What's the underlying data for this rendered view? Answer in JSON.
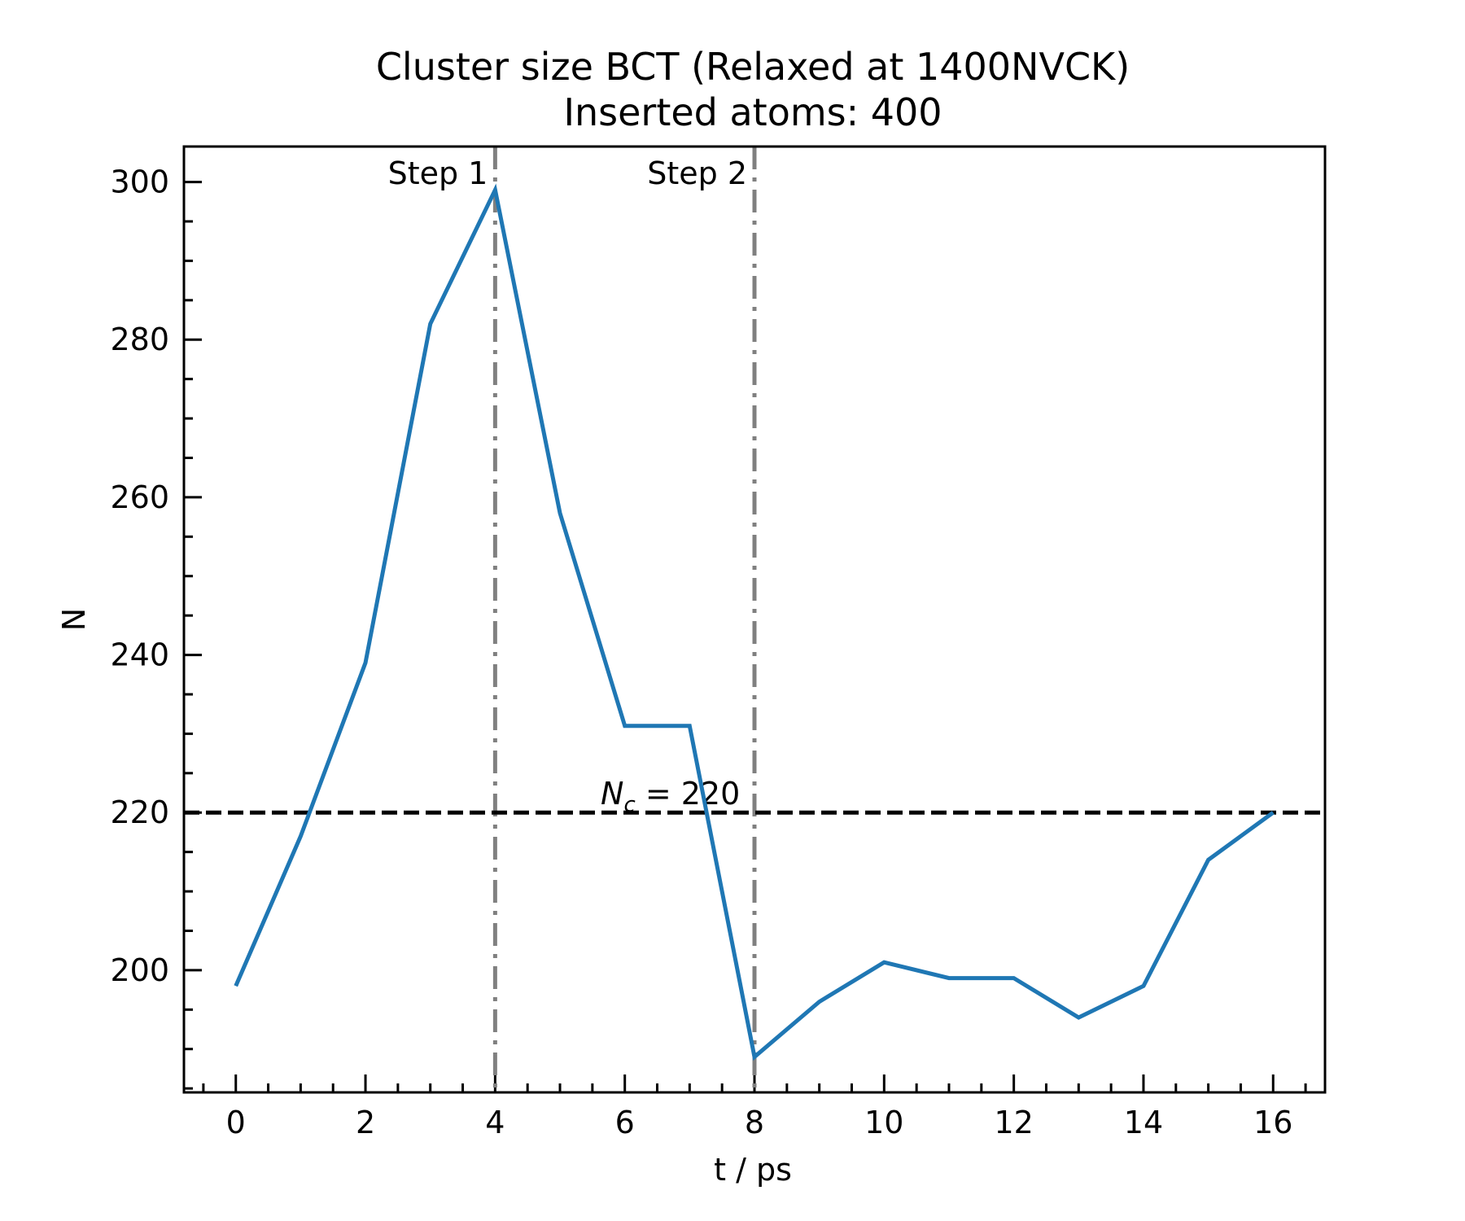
{
  "chart_data": {
    "type": "line",
    "title": "Cluster size BCT (Relaxed at 1400NVCK)",
    "subtitle": "Inserted atoms: 400",
    "xlabel": "t / ps",
    "ylabel": "N",
    "xlim": [
      -0.8,
      16.8
    ],
    "ylim": [
      184.5,
      304.5
    ],
    "xticks": [
      0,
      2,
      4,
      6,
      8,
      10,
      12,
      14,
      16
    ],
    "yticks": [
      200,
      220,
      240,
      260,
      280,
      300
    ],
    "grid": false,
    "series": [
      {
        "color": "#1f77b4",
        "x": [
          0,
          1,
          2,
          3,
          4,
          5,
          6,
          7,
          8,
          9,
          10,
          11,
          12,
          13,
          14,
          15,
          16
        ],
        "y": [
          198,
          217,
          239,
          282,
          299,
          258,
          231,
          231,
          189,
          196,
          201,
          199,
          199,
          194,
          198,
          214,
          220
        ]
      }
    ],
    "reference_lines": {
      "horizontal": {
        "y": 220,
        "label_var": "N",
        "label_sub": "c",
        "label_rest": " = 220",
        "color": "#000000"
      },
      "vertical": [
        {
          "x": 4,
          "label": "Step 1",
          "color": "#808080"
        },
        {
          "x": 8,
          "label": "Step 2",
          "color": "#808080"
        }
      ]
    }
  }
}
